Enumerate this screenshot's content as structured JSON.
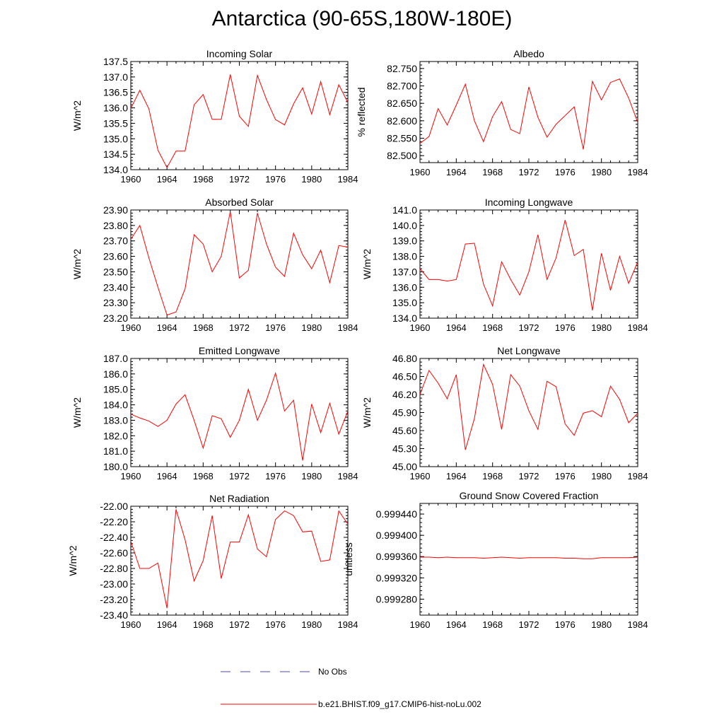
{
  "title": "Antarctica (90-65S,180W-180E)",
  "colors": {
    "model": "#ff0000",
    "obs": "#4a4ab0",
    "axis": "#000000"
  },
  "legend": {
    "obs_label": "No Obs",
    "model_label": "b.e21.BHIST.f09_g17.CMIP6-hist-noLu.002"
  },
  "chart_data": [
    {
      "type": "line",
      "title": "Incoming Solar",
      "ylabel": "W/m^2",
      "ylim": [
        134.0,
        137.5
      ],
      "yticks": [
        "134.0",
        "134.5",
        "135.0",
        "135.5",
        "136.0",
        "136.5",
        "137.0",
        "137.5"
      ],
      "x": [
        1960,
        1961,
        1962,
        1963,
        1964,
        1965,
        1966,
        1967,
        1968,
        1969,
        1970,
        1971,
        1972,
        1973,
        1974,
        1975,
        1976,
        1977,
        1978,
        1979,
        1980,
        1981,
        1982,
        1983,
        1984
      ],
      "values": [
        135.98,
        136.57,
        135.97,
        134.63,
        134.07,
        134.6,
        134.6,
        136.1,
        136.43,
        135.63,
        135.63,
        137.08,
        135.73,
        135.4,
        137.05,
        136.27,
        135.62,
        135.45,
        136.13,
        136.65,
        135.8,
        136.85,
        135.78,
        136.75,
        136.17
      ],
      "xlim": [
        1960,
        1984
      ],
      "xticks": [
        "1960",
        "1964",
        "1968",
        "1972",
        "1976",
        "1980",
        "1984"
      ]
    },
    {
      "type": "line",
      "title": "Albedo",
      "ylabel": "% reflected",
      "ylim": [
        82.48,
        82.77
      ],
      "yticks": [
        "82.500",
        "82.550",
        "82.600",
        "82.650",
        "82.700",
        "82.750"
      ],
      "x": [
        1960,
        1961,
        1962,
        1963,
        1964,
        1965,
        1966,
        1967,
        1968,
        1969,
        1970,
        1971,
        1972,
        1973,
        1974,
        1975,
        1976,
        1977,
        1978,
        1979,
        1980,
        1981,
        1982,
        1983,
        1984
      ],
      "values": [
        82.535,
        82.555,
        82.635,
        82.588,
        82.645,
        82.705,
        82.6,
        82.54,
        82.612,
        82.655,
        82.575,
        82.563,
        82.697,
        82.61,
        82.553,
        82.59,
        82.615,
        82.64,
        82.518,
        82.713,
        82.66,
        82.71,
        82.72,
        82.665,
        82.595
      ],
      "xlim": [
        1960,
        1984
      ],
      "xticks": [
        "1960",
        "1964",
        "1968",
        "1972",
        "1976",
        "1980",
        "1984"
      ]
    },
    {
      "type": "line",
      "title": "Absorbed Solar",
      "ylabel": "W/m^2",
      "ylim": [
        23.2,
        23.9
      ],
      "yticks": [
        "23.20",
        "23.30",
        "23.40",
        "23.50",
        "23.60",
        "23.70",
        "23.80",
        "23.90"
      ],
      "x": [
        1960,
        1961,
        1962,
        1963,
        1964,
        1965,
        1966,
        1967,
        1968,
        1969,
        1970,
        1971,
        1972,
        1973,
        1974,
        1975,
        1976,
        1977,
        1978,
        1979,
        1980,
        1981,
        1982,
        1983,
        1984
      ],
      "values": [
        23.71,
        23.8,
        23.59,
        23.4,
        23.22,
        23.24,
        23.39,
        23.74,
        23.68,
        23.5,
        23.6,
        23.89,
        23.46,
        23.51,
        23.88,
        23.68,
        23.53,
        23.47,
        23.75,
        23.61,
        23.52,
        23.64,
        23.43,
        23.67,
        23.66
      ],
      "xlim": [
        1960,
        1984
      ],
      "xticks": [
        "1960",
        "1964",
        "1968",
        "1972",
        "1976",
        "1980",
        "1984"
      ]
    },
    {
      "type": "line",
      "title": "Incoming Longwave",
      "ylabel": "W/m^2",
      "ylim": [
        134.0,
        141.0
      ],
      "yticks": [
        "134.0",
        "135.0",
        "136.0",
        "137.0",
        "138.0",
        "139.0",
        "140.0",
        "141.0"
      ],
      "x": [
        1960,
        1961,
        1962,
        1963,
        1964,
        1965,
        1966,
        1967,
        1968,
        1969,
        1970,
        1971,
        1972,
        1973,
        1974,
        1975,
        1976,
        1977,
        1978,
        1979,
        1980,
        1981,
        1982,
        1983,
        1984
      ],
      "values": [
        137.2,
        136.5,
        136.5,
        136.4,
        136.5,
        138.8,
        138.85,
        136.2,
        134.8,
        137.65,
        136.5,
        135.5,
        137.0,
        139.4,
        136.5,
        137.9,
        140.35,
        138.05,
        138.45,
        134.5,
        138.2,
        135.8,
        138.0,
        136.25,
        137.65
      ],
      "xlim": [
        1960,
        1984
      ],
      "xticks": [
        "1960",
        "1964",
        "1968",
        "1972",
        "1976",
        "1980",
        "1984"
      ]
    },
    {
      "type": "line",
      "title": "Emitted Longwave",
      "ylabel": "W/m^2",
      "ylim": [
        180.0,
        187.0
      ],
      "yticks": [
        "180.0",
        "181.0",
        "182.0",
        "183.0",
        "184.0",
        "185.0",
        "186.0",
        "187.0"
      ],
      "x": [
        1960,
        1961,
        1962,
        1963,
        1964,
        1965,
        1966,
        1967,
        1968,
        1969,
        1970,
        1971,
        1972,
        1973,
        1974,
        1975,
        1976,
        1977,
        1978,
        1979,
        1980,
        1981,
        1982,
        1983,
        1984
      ],
      "values": [
        183.4,
        183.15,
        182.95,
        182.6,
        183.0,
        184.05,
        184.65,
        183.0,
        181.2,
        183.3,
        183.1,
        181.9,
        183.0,
        185.0,
        183.0,
        184.3,
        186.05,
        183.6,
        184.3,
        180.4,
        184.05,
        182.2,
        184.1,
        182.1,
        183.6
      ],
      "xlim": [
        1960,
        1984
      ],
      "xticks": [
        "1960",
        "1964",
        "1968",
        "1972",
        "1976",
        "1980",
        "1984"
      ]
    },
    {
      "type": "line",
      "title": "Net Longwave",
      "ylabel": "W/m^2",
      "ylim": [
        45.0,
        46.8
      ],
      "yticks": [
        "45.00",
        "45.30",
        "45.60",
        "45.90",
        "46.20",
        "46.50",
        "46.80"
      ],
      "x": [
        1960,
        1961,
        1962,
        1963,
        1964,
        1965,
        1966,
        1967,
        1968,
        1969,
        1970,
        1971,
        1972,
        1973,
        1974,
        1975,
        1976,
        1977,
        1978,
        1979,
        1980,
        1981,
        1982,
        1983,
        1984
      ],
      "values": [
        46.2,
        46.6,
        46.39,
        46.13,
        46.53,
        45.28,
        45.8,
        46.7,
        46.37,
        45.62,
        46.53,
        46.34,
        45.93,
        45.62,
        46.42,
        46.33,
        45.71,
        45.52,
        45.89,
        45.93,
        45.83,
        46.34,
        46.12,
        45.73,
        45.89
      ],
      "xlim": [
        1960,
        1984
      ],
      "xticks": [
        "1960",
        "1964",
        "1968",
        "1972",
        "1976",
        "1980",
        "1984"
      ]
    },
    {
      "type": "line",
      "title": "Net Radiation",
      "ylabel": "W/m^2",
      "ylim": [
        -23.4,
        -22.0
      ],
      "yticks": [
        "-23.40",
        "-23.20",
        "-23.00",
        "-22.80",
        "-22.60",
        "-22.40",
        "-22.20",
        "-22.00"
      ],
      "x": [
        1960,
        1961,
        1962,
        1963,
        1964,
        1965,
        1966,
        1967,
        1968,
        1969,
        1970,
        1971,
        1972,
        1973,
        1974,
        1975,
        1976,
        1977,
        1978,
        1979,
        1980,
        1981,
        1982,
        1983,
        1984
      ],
      "values": [
        -22.45,
        -22.8,
        -22.8,
        -22.73,
        -23.31,
        -22.04,
        -22.43,
        -22.96,
        -22.7,
        -22.12,
        -22.93,
        -22.46,
        -22.46,
        -22.11,
        -22.55,
        -22.65,
        -22.17,
        -22.06,
        -22.12,
        -22.33,
        -22.32,
        -22.71,
        -22.69,
        -22.06,
        -22.23
      ],
      "xlim": [
        1960,
        1984
      ],
      "xticks": [
        "1960",
        "1964",
        "1968",
        "1972",
        "1976",
        "1980",
        "1984"
      ]
    },
    {
      "type": "line",
      "title": "Ground Snow Covered Fraction",
      "ylabel": "unitless",
      "ylim": [
        0.99925,
        0.99946
      ],
      "yticks": [
        "0.999280",
        "0.999320",
        "0.999360",
        "0.999400",
        "0.999440"
      ],
      "x": [
        1960,
        1961,
        1962,
        1963,
        1964,
        1965,
        1966,
        1967,
        1968,
        1969,
        1970,
        1971,
        1972,
        1973,
        1974,
        1975,
        1976,
        1977,
        1978,
        1979,
        1980,
        1981,
        1982,
        1983,
        1984
      ],
      "values": [
        0.999359,
        0.999359,
        0.999358,
        0.999359,
        0.999358,
        0.999358,
        0.999358,
        0.999357,
        0.999358,
        0.999359,
        0.999358,
        0.999357,
        0.999358,
        0.999358,
        0.999358,
        0.999358,
        0.999357,
        0.999357,
        0.999356,
        0.999356,
        0.999358,
        0.999358,
        0.999358,
        0.999358,
        0.999359
      ],
      "xlim": [
        1960,
        1984
      ],
      "xticks": [
        "1960",
        "1964",
        "1968",
        "1972",
        "1976",
        "1980",
        "1984"
      ]
    }
  ]
}
